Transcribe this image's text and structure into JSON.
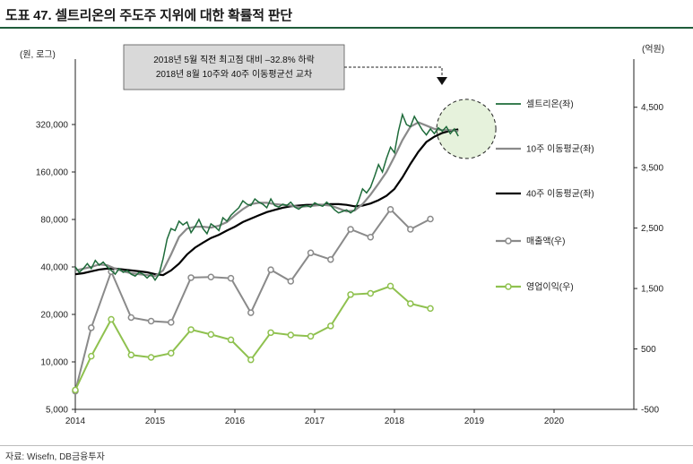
{
  "header": {
    "title": "도표 47. 셀트리온의 주도주 지위에 대한 확률적 판단"
  },
  "footer": {
    "source": "자료: Wisefn, DB금융투자"
  },
  "colors": {
    "celltrion": "#1e6b3a",
    "ma10": "#8a8a8a",
    "ma40": "#000000",
    "revenue": "#8a8a8a",
    "op_income": "#8fc14f",
    "title_rule": "#1f5c3a",
    "highlight_fill": "#e6f2dc"
  },
  "annotation": {
    "line1": "2018년 5월 직전 최고점 대비 –32.8% 하락",
    "line2": "2018년 8월 10주와 40주 이동평균선 교차"
  },
  "chart_data": {
    "type": "line",
    "title": "",
    "left_unit": "(원, 로그)",
    "right_unit": "(억원)",
    "x_ticks": [
      "2014",
      "2015",
      "2016",
      "2017",
      "2018",
      "2019",
      "2020"
    ],
    "x_range": [
      2014,
      2021
    ],
    "y_left_scale": "log",
    "y_left_range": [
      5000,
      640000
    ],
    "y_left_ticks": [
      "5,000",
      "10,000",
      "20,000",
      "40,000",
      "80,000",
      "160,000",
      "320,000"
    ],
    "y_left_tick_values": [
      5000,
      10000,
      20000,
      40000,
      80000,
      160000,
      320000
    ],
    "y_right_range": [
      -500,
      5000
    ],
    "y_right_ticks": [
      "-500",
      "500",
      "1,500",
      "2,500",
      "3,500",
      "4,500"
    ],
    "y_right_tick_values": [
      -500,
      500,
      1500,
      2500,
      3500,
      4500
    ],
    "legend": [
      {
        "key": "celltrion",
        "label": "셀트리온(좌)"
      },
      {
        "key": "ma10",
        "label": "10주 이동평균(좌)"
      },
      {
        "key": "ma40",
        "label": "40주 이동평균(좌)"
      },
      {
        "key": "revenue",
        "label": "매출액(우)"
      },
      {
        "key": "op_income",
        "label": "영업이익(우)"
      }
    ],
    "series_price": {
      "name": "셀트리온(좌)",
      "x": [
        2014.0,
        2014.05,
        2014.1,
        2014.15,
        2014.2,
        2014.25,
        2014.3,
        2014.35,
        2014.4,
        2014.45,
        2014.5,
        2014.55,
        2014.6,
        2014.65,
        2014.7,
        2014.75,
        2014.8,
        2014.85,
        2014.9,
        2014.95,
        2015.0,
        2015.05,
        2015.1,
        2015.15,
        2015.2,
        2015.25,
        2015.3,
        2015.35,
        2015.4,
        2015.45,
        2015.5,
        2015.55,
        2015.6,
        2015.65,
        2015.7,
        2015.75,
        2015.8,
        2015.85,
        2015.9,
        2015.95,
        2016.0,
        2016.05,
        2016.1,
        2016.15,
        2016.2,
        2016.25,
        2016.3,
        2016.35,
        2016.4,
        2016.45,
        2016.5,
        2016.55,
        2016.6,
        2016.65,
        2016.7,
        2016.75,
        2016.8,
        2016.85,
        2016.9,
        2016.95,
        2017.0,
        2017.05,
        2017.1,
        2017.15,
        2017.2,
        2017.25,
        2017.3,
        2017.35,
        2017.4,
        2017.45,
        2017.5,
        2017.55,
        2017.6,
        2017.65,
        2017.7,
        2017.75,
        2017.8,
        2017.85,
        2017.9,
        2017.95,
        2018.0,
        2018.05,
        2018.1,
        2018.15,
        2018.2,
        2018.25,
        2018.3,
        2018.35,
        2018.4,
        2018.45,
        2018.5,
        2018.55,
        2018.6,
        2018.65,
        2018.7,
        2018.75,
        2018.8
      ],
      "values": [
        40000,
        37000,
        39000,
        42000,
        39000,
        44000,
        41000,
        43000,
        40000,
        38000,
        36000,
        39000,
        37000,
        38000,
        36000,
        35000,
        37000,
        36000,
        34000,
        36000,
        33000,
        36000,
        45000,
        60000,
        70000,
        68000,
        78000,
        74000,
        77000,
        66000,
        72000,
        80000,
        70000,
        65000,
        75000,
        72000,
        68000,
        82000,
        78000,
        85000,
        90000,
        95000,
        105000,
        100000,
        98000,
        108000,
        103000,
        100000,
        95000,
        108000,
        98000,
        96000,
        100000,
        98000,
        103000,
        96000,
        93000,
        97000,
        98000,
        96000,
        102000,
        99000,
        97000,
        103000,
        98000,
        92000,
        88000,
        90000,
        92000,
        88000,
        92000,
        105000,
        125000,
        118000,
        128000,
        150000,
        178000,
        160000,
        195000,
        230000,
        212000,
        290000,
        370000,
        320000,
        310000,
        360000,
        325000,
        295000,
        275000,
        300000,
        280000,
        305000,
        290000,
        310000,
        280000,
        300000,
        270000
      ]
    },
    "series_ma10": {
      "name": "10주 이동평균(좌)",
      "x": [
        2014.0,
        2014.1,
        2014.2,
        2014.3,
        2014.4,
        2014.5,
        2014.6,
        2014.7,
        2014.8,
        2014.9,
        2015.0,
        2015.1,
        2015.2,
        2015.3,
        2015.4,
        2015.5,
        2015.6,
        2015.7,
        2015.8,
        2015.9,
        2016.0,
        2016.1,
        2016.2,
        2016.3,
        2016.4,
        2016.5,
        2016.6,
        2016.7,
        2016.8,
        2016.9,
        2017.0,
        2017.1,
        2017.2,
        2017.3,
        2017.4,
        2017.5,
        2017.6,
        2017.7,
        2017.8,
        2017.9,
        2018.0,
        2018.1,
        2018.2,
        2018.3,
        2018.4,
        2018.5,
        2018.6,
        2018.7,
        2018.8
      ],
      "values": [
        38000,
        39000,
        40000,
        41500,
        41000,
        39000,
        37500,
        36500,
        36000,
        35500,
        35000,
        38000,
        48000,
        62000,
        70000,
        72000,
        72000,
        71000,
        73000,
        77000,
        85000,
        93000,
        100000,
        102000,
        102000,
        100000,
        99000,
        98000,
        96000,
        97000,
        98000,
        99000,
        98000,
        94000,
        90000,
        91000,
        100000,
        115000,
        135000,
        160000,
        200000,
        255000,
        310000,
        330000,
        315000,
        300000,
        295000,
        295000,
        290000
      ]
    },
    "series_ma40": {
      "name": "40주 이동평균(좌)",
      "x": [
        2014.0,
        2014.1,
        2014.2,
        2014.3,
        2014.4,
        2014.5,
        2014.6,
        2014.7,
        2014.8,
        2014.9,
        2015.0,
        2015.1,
        2015.2,
        2015.3,
        2015.4,
        2015.5,
        2015.6,
        2015.7,
        2015.8,
        2015.9,
        2016.0,
        2016.1,
        2016.2,
        2016.3,
        2016.4,
        2016.5,
        2016.6,
        2016.7,
        2016.8,
        2016.9,
        2017.0,
        2017.1,
        2017.2,
        2017.3,
        2017.4,
        2017.5,
        2017.6,
        2017.7,
        2017.8,
        2017.9,
        2018.0,
        2018.1,
        2018.2,
        2018.3,
        2018.4,
        2018.5,
        2018.6,
        2018.7,
        2018.8
      ],
      "values": [
        36000,
        36500,
        37500,
        38500,
        39000,
        39000,
        38500,
        38000,
        37500,
        37000,
        36000,
        35500,
        38000,
        42000,
        48000,
        53000,
        57000,
        61000,
        64000,
        68000,
        72000,
        77000,
        81000,
        85000,
        89000,
        92000,
        95000,
        97000,
        98000,
        99000,
        99000,
        99000,
        100000,
        100000,
        99000,
        97000,
        98000,
        101000,
        106000,
        113000,
        125000,
        148000,
        180000,
        215000,
        248000,
        268000,
        283000,
        292000,
        298000
      ]
    },
    "series_revenue": {
      "name": "매출액(우)",
      "x": [
        2014.0,
        2014.2,
        2014.45,
        2014.7,
        2014.95,
        2015.2,
        2015.45,
        2015.7,
        2015.95,
        2016.2,
        2016.45,
        2016.7,
        2016.95,
        2017.2,
        2017.45,
        2017.7,
        2017.95,
        2018.2,
        2018.45
      ],
      "values": [
        -200,
        850,
        1780,
        1020,
        960,
        940,
        1680,
        1690,
        1670,
        1100,
        1810,
        1620,
        2090,
        1980,
        2480,
        2350,
        2810,
        2480,
        2650
      ]
    },
    "series_op_income": {
      "name": "영업이익(우)",
      "x": [
        2014.0,
        2014.2,
        2014.45,
        2014.7,
        2014.95,
        2015.2,
        2015.45,
        2015.7,
        2015.95,
        2016.2,
        2016.45,
        2016.7,
        2016.95,
        2017.2,
        2017.45,
        2017.7,
        2017.95,
        2018.2,
        2018.45
      ],
      "values": [
        -180,
        380,
        990,
        400,
        360,
        430,
        820,
        740,
        650,
        320,
        770,
        730,
        710,
        880,
        1400,
        1420,
        1540,
        1250,
        1170
      ]
    }
  }
}
